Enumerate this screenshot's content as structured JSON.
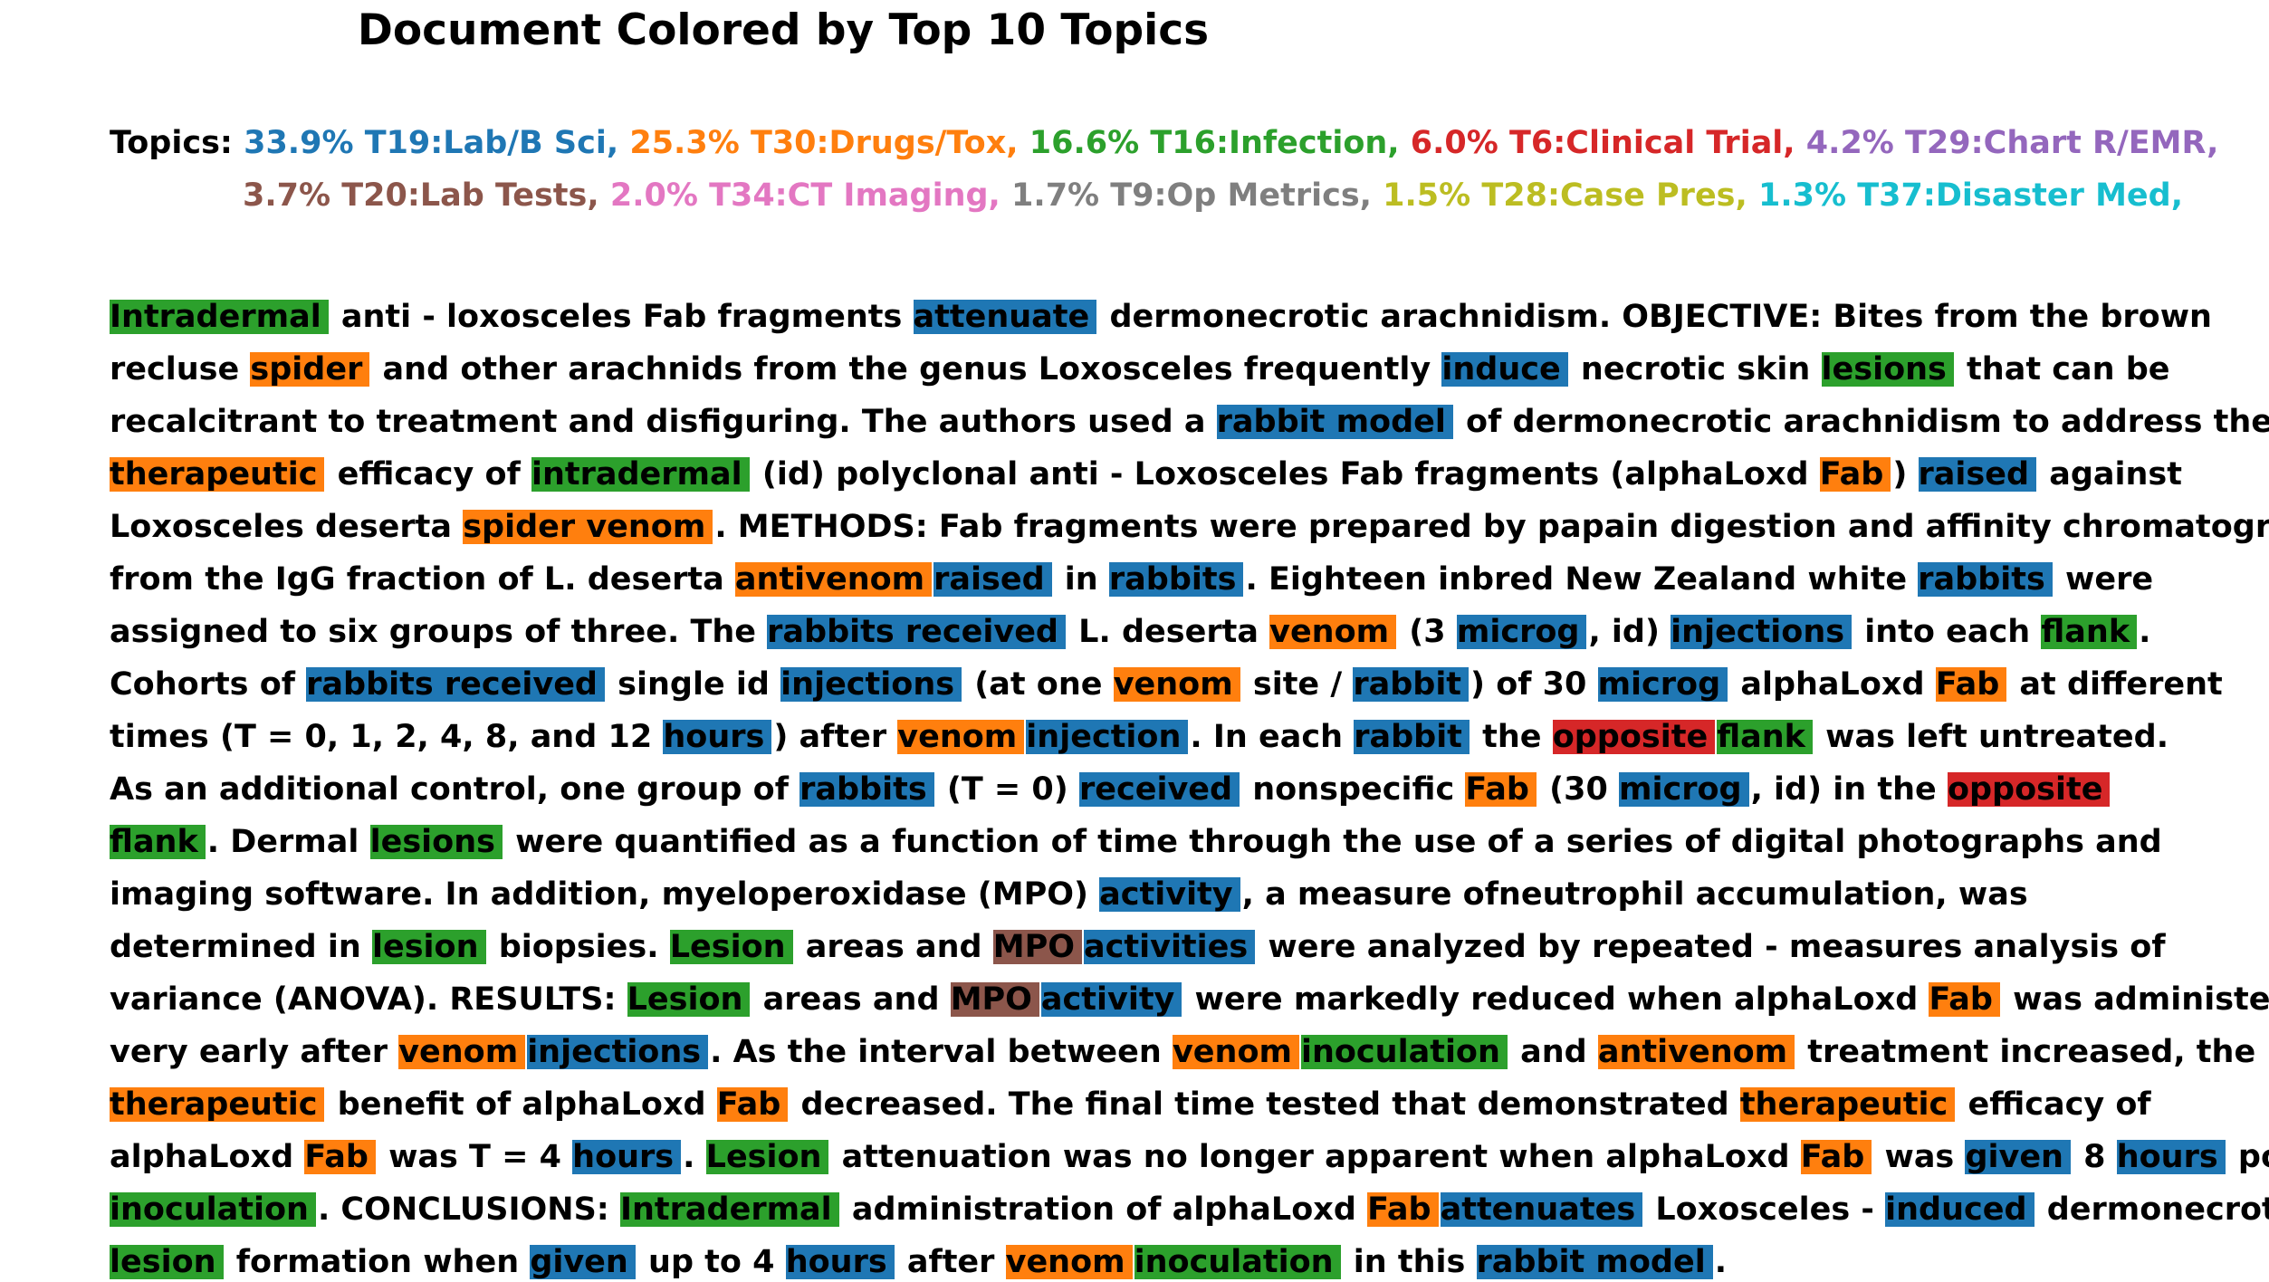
{
  "title": "Document Colored by Top 10 Topics",
  "topic_colors": {
    "T19": "#1f77b4",
    "T30": "#ff7f0e",
    "T16": "#2ca02c",
    "T6": "#d62728",
    "T29": "#9467bd",
    "T20": "#8c564b",
    "T34": "#e377c2",
    "T9": "#7f7f7f",
    "T28": "#bcbd22",
    "T37": "#17becf"
  },
  "legend": {
    "lines": [
      [
        {
          "text": "Topics: ",
          "topic": null
        },
        {
          "text": "33.9% T19:Lab/B Sci, ",
          "topic": "T19"
        },
        {
          "text": "25.3% T30:Drugs/Tox, ",
          "topic": "T30"
        },
        {
          "text": "16.6% T16:Infection, ",
          "topic": "T16"
        },
        {
          "text": "6.0% T6:Clinical Trial, ",
          "topic": "T6"
        },
        {
          "text": "4.2% T29:Chart R/EMR,",
          "topic": "T29"
        }
      ],
      [
        {
          "text": "3.7% T20:Lab Tests, ",
          "topic": "T20"
        },
        {
          "text": "2.0% T34:CT Imaging, ",
          "topic": "T34"
        },
        {
          "text": "1.7% T9:Op Metrics, ",
          "topic": "T9"
        },
        {
          "text": "1.5% T28:Case Pres, ",
          "topic": "T28"
        },
        {
          "text": "1.3% T37:Disaster Med,",
          "topic": "T37"
        }
      ]
    ]
  },
  "document": {
    "lines": [
      [
        {
          "t": "Intradermal",
          "c": "T16"
        },
        {
          "t": " anti - loxosceles Fab fragments "
        },
        {
          "t": "attenuate",
          "c": "T19"
        },
        {
          "t": " dermonecrotic arachnidism. OBJECTIVE: Bites from the brown"
        }
      ],
      [
        {
          "t": "recluse "
        },
        {
          "t": "spider",
          "c": "T30"
        },
        {
          "t": " and other arachnids from the genus Loxosceles frequently "
        },
        {
          "t": "induce",
          "c": "T19"
        },
        {
          "t": " necrotic skin "
        },
        {
          "t": "lesions",
          "c": "T16"
        },
        {
          "t": " that can be"
        }
      ],
      [
        {
          "t": "recalcitrant to treatment and disfiguring. The authors used a "
        },
        {
          "t": "rabbit model",
          "c": "T19"
        },
        {
          "t": " of dermonecrotic arachnidism to address the"
        }
      ],
      [
        {
          "t": "therapeutic",
          "c": "T30"
        },
        {
          "t": " efficacy of "
        },
        {
          "t": "intradermal",
          "c": "T16"
        },
        {
          "t": " (id) polyclonal anti - Loxosceles Fab fragments (alphaLoxd "
        },
        {
          "t": "Fab",
          "c": "T30"
        },
        {
          "t": ") "
        },
        {
          "t": "raised",
          "c": "T19"
        },
        {
          "t": " against"
        }
      ],
      [
        {
          "t": "Loxosceles deserta "
        },
        {
          "t": "spider venom",
          "c": "T30"
        },
        {
          "t": ". METHODS: Fab fragments were prepared by papain digestion and affinity chromatography"
        }
      ],
      [
        {
          "t": "from the IgG fraction of L. deserta "
        },
        {
          "t": "antivenom",
          "c": "T30"
        },
        {
          "t": "raised",
          "c": "T19"
        },
        {
          "t": " in "
        },
        {
          "t": "rabbits",
          "c": "T19"
        },
        {
          "t": ". Eighteen inbred New Zealand white "
        },
        {
          "t": "rabbits",
          "c": "T19"
        },
        {
          "t": " were"
        }
      ],
      [
        {
          "t": "assigned to six groups of three. The "
        },
        {
          "t": "rabbits received",
          "c": "T19"
        },
        {
          "t": " L. deserta "
        },
        {
          "t": "venom",
          "c": "T30"
        },
        {
          "t": " (3 "
        },
        {
          "t": "microg",
          "c": "T19"
        },
        {
          "t": ", id) "
        },
        {
          "t": "injections",
          "c": "T19"
        },
        {
          "t": " into each "
        },
        {
          "t": "flank",
          "c": "T16"
        },
        {
          "t": "."
        }
      ],
      [
        {
          "t": "Cohorts of "
        },
        {
          "t": "rabbits received",
          "c": "T19"
        },
        {
          "t": " single id "
        },
        {
          "t": "injections",
          "c": "T19"
        },
        {
          "t": " (at one "
        },
        {
          "t": "venom",
          "c": "T30"
        },
        {
          "t": " site / "
        },
        {
          "t": "rabbit",
          "c": "T19"
        },
        {
          "t": ") of 30 "
        },
        {
          "t": "microg",
          "c": "T19"
        },
        {
          "t": " alphaLoxd "
        },
        {
          "t": "Fab",
          "c": "T30"
        },
        {
          "t": " at different"
        }
      ],
      [
        {
          "t": "times (T = 0, 1, 2, 4, 8, and 12 "
        },
        {
          "t": "hours",
          "c": "T19"
        },
        {
          "t": ") after "
        },
        {
          "t": "venom",
          "c": "T30"
        },
        {
          "t": "injection",
          "c": "T19"
        },
        {
          "t": ". In each "
        },
        {
          "t": "rabbit",
          "c": "T19"
        },
        {
          "t": " the "
        },
        {
          "t": "opposite",
          "c": "T6"
        },
        {
          "t": "flank",
          "c": "T16"
        },
        {
          "t": " was left untreated."
        }
      ],
      [
        {
          "t": "As an additional control, one group of "
        },
        {
          "t": "rabbits",
          "c": "T19"
        },
        {
          "t": " (T = 0) "
        },
        {
          "t": "received",
          "c": "T19"
        },
        {
          "t": " nonspecific "
        },
        {
          "t": "Fab",
          "c": "T30"
        },
        {
          "t": " (30 "
        },
        {
          "t": "microg",
          "c": "T19"
        },
        {
          "t": ", id) in the "
        },
        {
          "t": "opposite",
          "c": "T6"
        }
      ],
      [
        {
          "t": "flank",
          "c": "T16"
        },
        {
          "t": ". Dermal "
        },
        {
          "t": "lesions",
          "c": "T16"
        },
        {
          "t": " were quantified as a function of time through the use of a series of digital photographs and"
        }
      ],
      [
        {
          "t": "imaging software. In addition, myeloperoxidase (MPO) "
        },
        {
          "t": "activity",
          "c": "T19"
        },
        {
          "t": ", a measure ofneutrophil accumulation, was"
        }
      ],
      [
        {
          "t": "determined in "
        },
        {
          "t": "lesion",
          "c": "T16"
        },
        {
          "t": " biopsies. "
        },
        {
          "t": "Lesion",
          "c": "T16"
        },
        {
          "t": " areas and "
        },
        {
          "t": "MPO",
          "c": "T20"
        },
        {
          "t": "activities",
          "c": "T19"
        },
        {
          "t": " were analyzed by repeated - measures analysis of"
        }
      ],
      [
        {
          "t": "variance (ANOVA). RESULTS: "
        },
        {
          "t": "Lesion",
          "c": "T16"
        },
        {
          "t": " areas and "
        },
        {
          "t": "MPO",
          "c": "T20"
        },
        {
          "t": "activity",
          "c": "T19"
        },
        {
          "t": " were markedly reduced when alphaLoxd "
        },
        {
          "t": "Fab",
          "c": "T30"
        },
        {
          "t": " was administered"
        }
      ],
      [
        {
          "t": "very early after "
        },
        {
          "t": "venom",
          "c": "T30"
        },
        {
          "t": "injections",
          "c": "T19"
        },
        {
          "t": ". As the interval between "
        },
        {
          "t": "venom",
          "c": "T30"
        },
        {
          "t": "inoculation",
          "c": "T16"
        },
        {
          "t": " and "
        },
        {
          "t": "antivenom",
          "c": "T30"
        },
        {
          "t": " treatment increased, the"
        }
      ],
      [
        {
          "t": "therapeutic",
          "c": "T30"
        },
        {
          "t": " benefit of alphaLoxd "
        },
        {
          "t": "Fab",
          "c": "T30"
        },
        {
          "t": " decreased. The final time tested that demonstrated "
        },
        {
          "t": "therapeutic",
          "c": "T30"
        },
        {
          "t": " efficacy of"
        }
      ],
      [
        {
          "t": "alphaLoxd "
        },
        {
          "t": "Fab",
          "c": "T30"
        },
        {
          "t": " was T = 4 "
        },
        {
          "t": "hours",
          "c": "T19"
        },
        {
          "t": ". "
        },
        {
          "t": "Lesion",
          "c": "T16"
        },
        {
          "t": " attenuation was no longer apparent when alphaLoxd "
        },
        {
          "t": "Fab",
          "c": "T30"
        },
        {
          "t": " was "
        },
        {
          "t": "given",
          "c": "T19"
        },
        {
          "t": " 8 "
        },
        {
          "t": "hours",
          "c": "T19"
        },
        {
          "t": " post"
        }
      ],
      [
        {
          "t": "inoculation",
          "c": "T16"
        },
        {
          "t": ". CONCLUSIONS: "
        },
        {
          "t": "Intradermal",
          "c": "T16"
        },
        {
          "t": " administration of alphaLoxd "
        },
        {
          "t": "Fab",
          "c": "T30"
        },
        {
          "t": "attenuates",
          "c": "T19"
        },
        {
          "t": " Loxosceles - "
        },
        {
          "t": "induced",
          "c": "T19"
        },
        {
          "t": " dermonecrotic"
        }
      ],
      [
        {
          "t": "lesion",
          "c": "T16"
        },
        {
          "t": " formation when "
        },
        {
          "t": "given",
          "c": "T19"
        },
        {
          "t": " up to 4 "
        },
        {
          "t": "hours",
          "c": "T19"
        },
        {
          "t": " after "
        },
        {
          "t": "venom",
          "c": "T30"
        },
        {
          "t": "inoculation",
          "c": "T16"
        },
        {
          "t": " in this "
        },
        {
          "t": "rabbit model",
          "c": "T19"
        },
        {
          "t": "."
        }
      ]
    ]
  }
}
